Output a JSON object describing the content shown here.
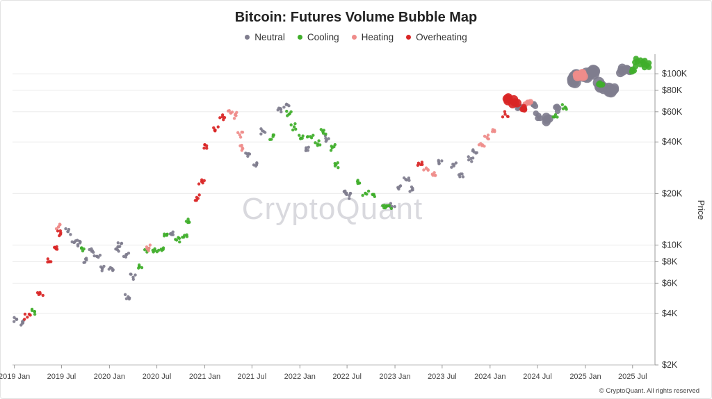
{
  "title": "Bitcoin: Futures Volume Bubble Map",
  "watermark": "CryptoQuant",
  "footer": "© CryptoQuant. All rights reserved",
  "legend": [
    {
      "key": "neutral",
      "label": "Neutral",
      "color": "#7f7d8e"
    },
    {
      "key": "cooling",
      "label": "Cooling",
      "color": "#3fae2a"
    },
    {
      "key": "heating",
      "label": "Heating",
      "color": "#ef8c8a"
    },
    {
      "key": "overheating",
      "label": "Overheating",
      "color": "#d92525"
    }
  ],
  "chart_data": {
    "type": "scatter",
    "title": "Bitcoin: Futures Volume Bubble Map",
    "xlabel": "",
    "ylabel": "Price",
    "yscale": "log",
    "ylim": [
      2000,
      130000
    ],
    "xlim": [
      "2018-12-25",
      "2025-09-25"
    ],
    "grid": "horizontal",
    "legend_position": "top-center",
    "y_ticks": [
      {
        "value": 2000,
        "label": "$2K"
      },
      {
        "value": 4000,
        "label": "$4K"
      },
      {
        "value": 6000,
        "label": "$6K"
      },
      {
        "value": 8000,
        "label": "$8K"
      },
      {
        "value": 10000,
        "label": "$10K"
      },
      {
        "value": 20000,
        "label": "$20K"
      },
      {
        "value": 40000,
        "label": "$40K"
      },
      {
        "value": 60000,
        "label": "$60K"
      },
      {
        "value": 80000,
        "label": "$80K"
      },
      {
        "value": 100000,
        "label": "$100K"
      }
    ],
    "x_ticks": [
      {
        "date": "2019-01-01",
        "label": "2019 Jan"
      },
      {
        "date": "2019-07-01",
        "label": "2019 Jul"
      },
      {
        "date": "2020-01-01",
        "label": "2020 Jan"
      },
      {
        "date": "2020-07-01",
        "label": "2020 Jul"
      },
      {
        "date": "2021-01-01",
        "label": "2021 Jan"
      },
      {
        "date": "2021-07-01",
        "label": "2021 Jul"
      },
      {
        "date": "2022-01-01",
        "label": "2022 Jan"
      },
      {
        "date": "2022-07-01",
        "label": "2022 Jul"
      },
      {
        "date": "2023-01-01",
        "label": "2023 Jan"
      },
      {
        "date": "2023-07-01",
        "label": "2023 Jul"
      },
      {
        "date": "2024-01-01",
        "label": "2024 Jan"
      },
      {
        "date": "2024-07-01",
        "label": "2024 Jul"
      },
      {
        "date": "2025-01-01",
        "label": "2025 Jan"
      },
      {
        "date": "2025-07-01",
        "label": "2025 Jul"
      }
    ],
    "series": [
      {
        "name": "Neutral",
        "color": "#7f7d8e",
        "points": [
          {
            "x": "2019-01-10",
            "y": 3700,
            "s": 1
          },
          {
            "x": "2019-02-01",
            "y": 3500,
            "s": 1
          },
          {
            "x": "2019-07-25",
            "y": 12000,
            "s": 1
          },
          {
            "x": "2019-08-20",
            "y": 10400,
            "s": 1
          },
          {
            "x": "2019-09-10",
            "y": 10300,
            "s": 1
          },
          {
            "x": "2019-10-05",
            "y": 8200,
            "s": 1
          },
          {
            "x": "2019-10-25",
            "y": 9200,
            "s": 1
          },
          {
            "x": "2019-11-15",
            "y": 8600,
            "s": 1
          },
          {
            "x": "2019-12-05",
            "y": 7300,
            "s": 1
          },
          {
            "x": "2020-01-05",
            "y": 7400,
            "s": 1
          },
          {
            "x": "2020-02-01",
            "y": 9400,
            "s": 1
          },
          {
            "x": "2020-02-15",
            "y": 10200,
            "s": 1
          },
          {
            "x": "2020-03-05",
            "y": 8800,
            "s": 1
          },
          {
            "x": "2020-03-13",
            "y": 5000,
            "s": 1
          },
          {
            "x": "2020-04-01",
            "y": 6500,
            "s": 1
          },
          {
            "x": "2020-09-01",
            "y": 11500,
            "s": 1
          },
          {
            "x": "2021-06-15",
            "y": 33000,
            "s": 1
          },
          {
            "x": "2021-07-20",
            "y": 30000,
            "s": 1
          },
          {
            "x": "2021-08-15",
            "y": 46000,
            "s": 1
          },
          {
            "x": "2021-10-20",
            "y": 62000,
            "s": 1
          },
          {
            "x": "2021-11-10",
            "y": 66000,
            "s": 1
          },
          {
            "x": "2022-01-25",
            "y": 37000,
            "s": 1
          },
          {
            "x": "2022-04-10",
            "y": 42000,
            "s": 1
          },
          {
            "x": "2022-06-20",
            "y": 20500,
            "s": 1
          },
          {
            "x": "2022-07-10",
            "y": 19500,
            "s": 1
          },
          {
            "x": "2022-12-20",
            "y": 16800,
            "s": 1
          },
          {
            "x": "2023-01-20",
            "y": 22000,
            "s": 1
          },
          {
            "x": "2023-02-15",
            "y": 24000,
            "s": 1
          },
          {
            "x": "2023-03-10",
            "y": 21000,
            "s": 1
          },
          {
            "x": "2023-06-20",
            "y": 30000,
            "s": 1
          },
          {
            "x": "2023-08-15",
            "y": 29000,
            "s": 1
          },
          {
            "x": "2023-09-10",
            "y": 26000,
            "s": 1
          },
          {
            "x": "2023-10-20",
            "y": 32000,
            "s": 1
          },
          {
            "x": "2023-11-01",
            "y": 35000,
            "s": 1
          },
          {
            "x": "2024-04-25",
            "y": 64000,
            "s": 2
          },
          {
            "x": "2024-05-10",
            "y": 63000,
            "s": 2
          },
          {
            "x": "2024-06-15",
            "y": 66000,
            "s": 2
          },
          {
            "x": "2024-07-05",
            "y": 57000,
            "s": 2
          },
          {
            "x": "2024-08-05",
            "y": 54000,
            "s": 3
          },
          {
            "x": "2024-09-20",
            "y": 63000,
            "s": 2
          },
          {
            "x": "2024-11-15",
            "y": 90000,
            "s": 4
          },
          {
            "x": "2024-11-25",
            "y": 96000,
            "s": 4
          },
          {
            "x": "2025-01-05",
            "y": 97000,
            "s": 4
          },
          {
            "x": "2025-02-01",
            "y": 100000,
            "s": 4
          },
          {
            "x": "2025-03-01",
            "y": 85000,
            "s": 4
          },
          {
            "x": "2025-04-01",
            "y": 82000,
            "s": 4
          },
          {
            "x": "2025-04-20",
            "y": 80000,
            "s": 3
          },
          {
            "x": "2025-05-20",
            "y": 105000,
            "s": 3
          },
          {
            "x": "2025-06-20",
            "y": 104000,
            "s": 3
          }
        ]
      },
      {
        "name": "Cooling",
        "color": "#3fae2a",
        "points": [
          {
            "x": "2019-03-20",
            "y": 4100,
            "s": 1
          },
          {
            "x": "2019-09-25",
            "y": 9500,
            "s": 1
          },
          {
            "x": "2020-04-25",
            "y": 7500,
            "s": 1
          },
          {
            "x": "2020-05-25",
            "y": 9400,
            "s": 1
          },
          {
            "x": "2020-06-25",
            "y": 9300,
            "s": 1
          },
          {
            "x": "2020-07-20",
            "y": 9300,
            "s": 1
          },
          {
            "x": "2020-08-10",
            "y": 11600,
            "s": 1
          },
          {
            "x": "2020-09-15",
            "y": 10700,
            "s": 1
          },
          {
            "x": "2020-10-15",
            "y": 11400,
            "s": 1
          },
          {
            "x": "2020-11-01",
            "y": 13700,
            "s": 1
          },
          {
            "x": "2021-09-20",
            "y": 43000,
            "s": 1
          },
          {
            "x": "2021-11-20",
            "y": 58000,
            "s": 1
          },
          {
            "x": "2021-12-10",
            "y": 49000,
            "s": 1
          },
          {
            "x": "2022-01-10",
            "y": 42000,
            "s": 1
          },
          {
            "x": "2022-02-10",
            "y": 43000,
            "s": 1
          },
          {
            "x": "2022-03-10",
            "y": 39000,
            "s": 1
          },
          {
            "x": "2022-03-30",
            "y": 46000,
            "s": 1
          },
          {
            "x": "2022-05-05",
            "y": 37000,
            "s": 1
          },
          {
            "x": "2022-05-20",
            "y": 29500,
            "s": 1
          },
          {
            "x": "2022-08-10",
            "y": 23500,
            "s": 1
          },
          {
            "x": "2022-09-10",
            "y": 20000,
            "s": 1
          },
          {
            "x": "2022-10-15",
            "y": 19200,
            "s": 1
          },
          {
            "x": "2022-11-25",
            "y": 16500,
            "s": 1
          },
          {
            "x": "2022-12-10",
            "y": 17000,
            "s": 1
          },
          {
            "x": "2024-09-05",
            "y": 56000,
            "s": 1
          },
          {
            "x": "2024-10-15",
            "y": 64000,
            "s": 1
          },
          {
            "x": "2025-02-25",
            "y": 88000,
            "s": 2
          },
          {
            "x": "2025-07-01",
            "y": 106000,
            "s": 2
          },
          {
            "x": "2025-07-20",
            "y": 118000,
            "s": 2
          },
          {
            "x": "2025-08-10",
            "y": 117000,
            "s": 2
          },
          {
            "x": "2025-08-25",
            "y": 112000,
            "s": 2
          }
        ]
      },
      {
        "name": "Heating",
        "color": "#ef8c8a",
        "points": [
          {
            "x": "2019-06-20",
            "y": 12800,
            "s": 1
          },
          {
            "x": "2020-06-01",
            "y": 9600,
            "s": 1
          },
          {
            "x": "2021-04-10",
            "y": 59000,
            "s": 1
          },
          {
            "x": "2021-05-01",
            "y": 57000,
            "s": 1
          },
          {
            "x": "2021-05-15",
            "y": 44000,
            "s": 1
          },
          {
            "x": "2021-05-25",
            "y": 37000,
            "s": 1
          },
          {
            "x": "2023-05-01",
            "y": 28000,
            "s": 1
          },
          {
            "x": "2023-06-01",
            "y": 26500,
            "s": 1
          },
          {
            "x": "2023-12-01",
            "y": 38000,
            "s": 1
          },
          {
            "x": "2023-12-20",
            "y": 42500,
            "s": 1
          },
          {
            "x": "2024-01-10",
            "y": 46000,
            "s": 1
          },
          {
            "x": "2024-05-25",
            "y": 68000,
            "s": 2
          },
          {
            "x": "2024-12-01",
            "y": 96000,
            "s": 3
          },
          {
            "x": "2024-12-20",
            "y": 100000,
            "s": 3
          }
        ]
      },
      {
        "name": "Overheating",
        "color": "#d92525",
        "points": [
          {
            "x": "2019-02-20",
            "y": 3800,
            "s": 1
          },
          {
            "x": "2019-04-10",
            "y": 5200,
            "s": 1
          },
          {
            "x": "2019-05-15",
            "y": 8000,
            "s": 1
          },
          {
            "x": "2019-06-10",
            "y": 9500,
            "s": 1
          },
          {
            "x": "2019-06-28",
            "y": 11800,
            "s": 1
          },
          {
            "x": "2020-12-01",
            "y": 19000,
            "s": 1
          },
          {
            "x": "2020-12-20",
            "y": 23500,
            "s": 1
          },
          {
            "x": "2021-01-08",
            "y": 38000,
            "s": 1
          },
          {
            "x": "2021-02-10",
            "y": 47000,
            "s": 1
          },
          {
            "x": "2021-03-10",
            "y": 56000,
            "s": 1
          },
          {
            "x": "2023-04-10",
            "y": 29500,
            "s": 1
          },
          {
            "x": "2024-02-28",
            "y": 58000,
            "s": 1
          },
          {
            "x": "2024-03-12",
            "y": 71000,
            "s": 3
          },
          {
            "x": "2024-04-05",
            "y": 68000,
            "s": 3
          },
          {
            "x": "2024-05-10",
            "y": 64000,
            "s": 2
          }
        ]
      }
    ]
  }
}
